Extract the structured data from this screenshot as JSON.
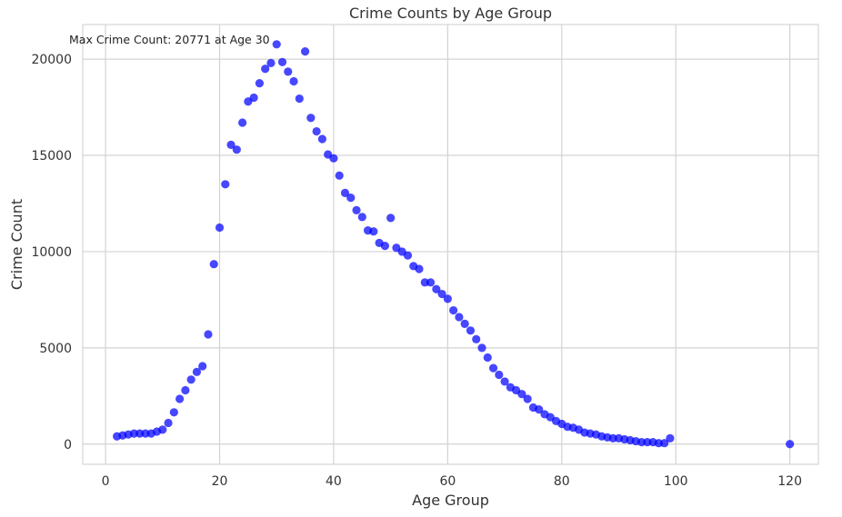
{
  "chart_data": {
    "type": "scatter",
    "title": "Crime Counts by Age Group",
    "xlabel": "Age Group",
    "ylabel": "Crime Count",
    "xlim": [
      -4,
      125
    ],
    "ylim": [
      -1050,
      21800
    ],
    "xticks": [
      0,
      20,
      40,
      60,
      80,
      100,
      120
    ],
    "yticks": [
      0,
      5000,
      10000,
      15000,
      20000
    ],
    "grid": true,
    "marker_color": "#0000ff",
    "annotation": "Max Crime Count: 20771 at Age 30",
    "x": [
      2,
      3,
      4,
      5,
      6,
      7,
      8,
      9,
      10,
      11,
      12,
      13,
      14,
      15,
      16,
      17,
      18,
      19,
      20,
      21,
      22,
      23,
      24,
      25,
      26,
      27,
      28,
      29,
      30,
      31,
      32,
      33,
      34,
      35,
      36,
      37,
      38,
      39,
      40,
      41,
      42,
      43,
      44,
      45,
      46,
      47,
      48,
      49,
      50,
      51,
      52,
      53,
      54,
      55,
      56,
      57,
      58,
      59,
      60,
      61,
      62,
      63,
      64,
      65,
      66,
      67,
      68,
      69,
      70,
      71,
      72,
      73,
      74,
      75,
      76,
      77,
      78,
      79,
      80,
      81,
      82,
      83,
      84,
      85,
      86,
      87,
      88,
      89,
      90,
      91,
      92,
      93,
      94,
      95,
      96,
      97,
      98,
      99,
      120
    ],
    "y": [
      400,
      450,
      500,
      550,
      550,
      550,
      550,
      650,
      750,
      1100,
      1650,
      2350,
      2800,
      3350,
      3750,
      4050,
      5700,
      9350,
      11250,
      13500,
      15550,
      15300,
      16700,
      17800,
      18000,
      18750,
      19500,
      19800,
      20771,
      19850,
      19350,
      18850,
      17950,
      20400,
      16950,
      16250,
      15850,
      15050,
      14850,
      13950,
      13050,
      12800,
      12150,
      11800,
      11100,
      11050,
      10450,
      10300,
      11750,
      10200,
      10000,
      9800,
      9250,
      9100,
      8400,
      8400,
      8050,
      7800,
      7550,
      6950,
      6600,
      6250,
      5900,
      5450,
      5000,
      4500,
      3950,
      3600,
      3250,
      2950,
      2800,
      2600,
      2350,
      1900,
      1800,
      1550,
      1400,
      1200,
      1050,
      900,
      850,
      750,
      600,
      550,
      500,
      400,
      350,
      300,
      300,
      250,
      200,
      150,
      100,
      100,
      100,
      50,
      50,
      300,
      0
    ]
  }
}
